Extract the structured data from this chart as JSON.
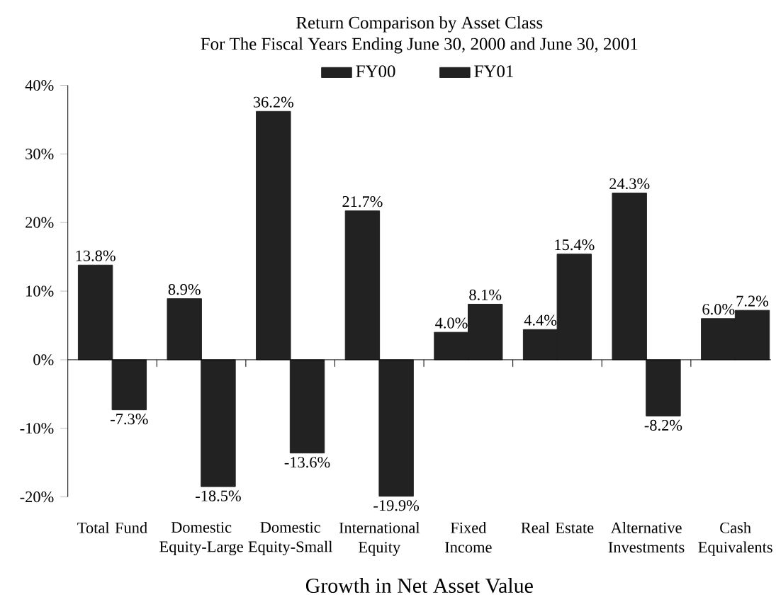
{
  "chart_data": {
    "type": "bar",
    "title": "Return Comparison by Asset Class",
    "subtitle": "For The Fiscal Years Ending June 30, 2000 and June 30, 2001",
    "xlabel": "Growth in Net Asset Value",
    "categories": [
      "Total Fund",
      "Domestic Equity-Large",
      "Domestic Equity-Small",
      "International Equity",
      "Fixed Income",
      "Real Estate",
      "Alternative Investments",
      "Cash Equivalents"
    ],
    "series": [
      {
        "name": "FY00",
        "color": "#222222",
        "values": [
          13.8,
          8.9,
          36.2,
          21.7,
          4.0,
          4.4,
          24.3,
          6.0
        ],
        "value_labels": [
          "13.8%",
          "8.9%",
          "36.2%",
          "21.7%",
          "4.0%",
          "4.4%",
          "24.3%",
          "6.0%"
        ]
      },
      {
        "name": "FY01",
        "color": "#222222",
        "values": [
          -7.3,
          -18.5,
          -13.6,
          -19.9,
          8.1,
          15.4,
          -8.2,
          7.2
        ],
        "value_labels": [
          "-7.3%",
          "-18.5%",
          "-13.6%",
          "-19.9%",
          "8.1%",
          "15.4%",
          "-8.2%",
          "7.2%"
        ]
      }
    ],
    "ylim": [
      -20,
      40
    ],
    "yticks": [
      {
        "value": -20,
        "label": "-20%"
      },
      {
        "value": -10,
        "label": "-10%"
      },
      {
        "value": 0,
        "label": "0%"
      },
      {
        "value": 10,
        "label": "10%"
      },
      {
        "value": 20,
        "label": "20%"
      },
      {
        "value": 30,
        "label": "30%"
      },
      {
        "value": 40,
        "label": "40%"
      }
    ],
    "legend": "top"
  }
}
